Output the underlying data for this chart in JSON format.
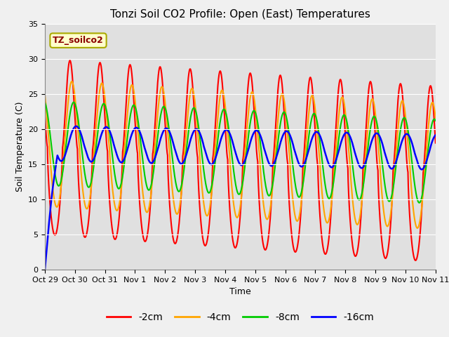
{
  "title": "Tonzi Soil CO2 Profile: Open (East) Temperatures",
  "ylabel": "Soil Temperature (C)",
  "xlabel": "Time",
  "annotation": "TZ_soilco2",
  "ylim": [
    0,
    35
  ],
  "xlim_hours": 312,
  "colors": {
    "-2cm": "#FF0000",
    "-4cm": "#FFA500",
    "-8cm": "#00CC00",
    "-16cm": "#0000FF"
  },
  "fig_bg": "#F0F0F0",
  "ax_bg": "#E0E0E0",
  "grid_color": "#FFFFFF",
  "x_tick_labels": [
    "Oct 29",
    "Oct 30",
    "Oct 31",
    "Nov 1",
    "Nov 2",
    "Nov 3",
    "Nov 4",
    "Nov 5",
    "Nov 6",
    "Nov 7",
    "Nov 8",
    "Nov 9",
    "Nov 10",
    "Nov 11"
  ],
  "yticks": [
    0,
    5,
    10,
    15,
    20,
    25,
    30,
    35
  ],
  "title_fontsize": 11,
  "label_fontsize": 9,
  "tick_fontsize": 8,
  "legend_fontsize": 10,
  "linewidth": 1.5
}
